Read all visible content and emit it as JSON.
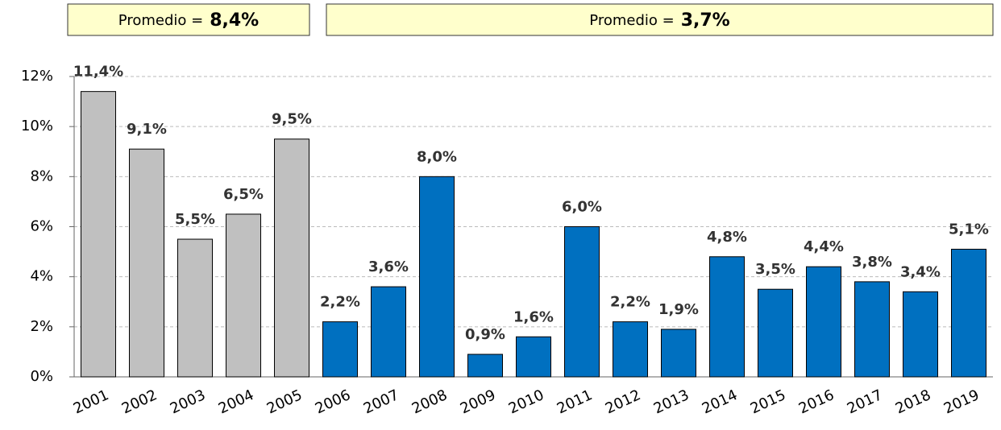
{
  "chart_data": {
    "type": "bar",
    "categories": [
      "2001",
      "2002",
      "2003",
      "2004",
      "2005",
      "2006",
      "2007",
      "2008",
      "2009",
      "2010",
      "2011",
      "2012",
      "2013",
      "2014",
      "2015",
      "2016",
      "2017",
      "2018",
      "2019"
    ],
    "values": [
      11.4,
      9.1,
      5.5,
      6.5,
      9.5,
      2.2,
      3.6,
      8.0,
      0.9,
      1.6,
      6.0,
      2.2,
      1.9,
      4.8,
      3.5,
      4.4,
      3.8,
      3.4,
      5.1
    ],
    "value_labels": [
      "11,4%",
      "9,1%",
      "5,5%",
      "6,5%",
      "9,5%",
      "2,2%",
      "3,6%",
      "8,0%",
      "0,9%",
      "1,6%",
      "6,0%",
      "2,2%",
      "1,9%",
      "4,8%",
      "3,5%",
      "4,4%",
      "3,8%",
      "3,4%",
      "5,1%"
    ],
    "colors": [
      "#c0c0c0",
      "#c0c0c0",
      "#c0c0c0",
      "#c0c0c0",
      "#c0c0c0",
      "#0070c0",
      "#0070c0",
      "#0070c0",
      "#0070c0",
      "#0070c0",
      "#0070c0",
      "#0070c0",
      "#0070c0",
      "#0070c0",
      "#0070c0",
      "#0070c0",
      "#0070c0",
      "#0070c0",
      "#0070c0"
    ],
    "ylim": [
      0,
      12
    ],
    "yticks": [
      {
        "value": 0,
        "label": "0%"
      },
      {
        "value": 2,
        "label": "2%"
      },
      {
        "value": 4,
        "label": "4%"
      },
      {
        "value": 6,
        "label": "6%"
      },
      {
        "value": 8,
        "label": "8%"
      },
      {
        "value": 10,
        "label": "10%"
      },
      {
        "value": 12,
        "label": "12%"
      }
    ],
    "grid": true,
    "annotations": [
      {
        "text": "Promedio =",
        "emphasis": "8,4%"
      },
      {
        "text": "Promedio =",
        "emphasis": "3,7%"
      }
    ]
  }
}
